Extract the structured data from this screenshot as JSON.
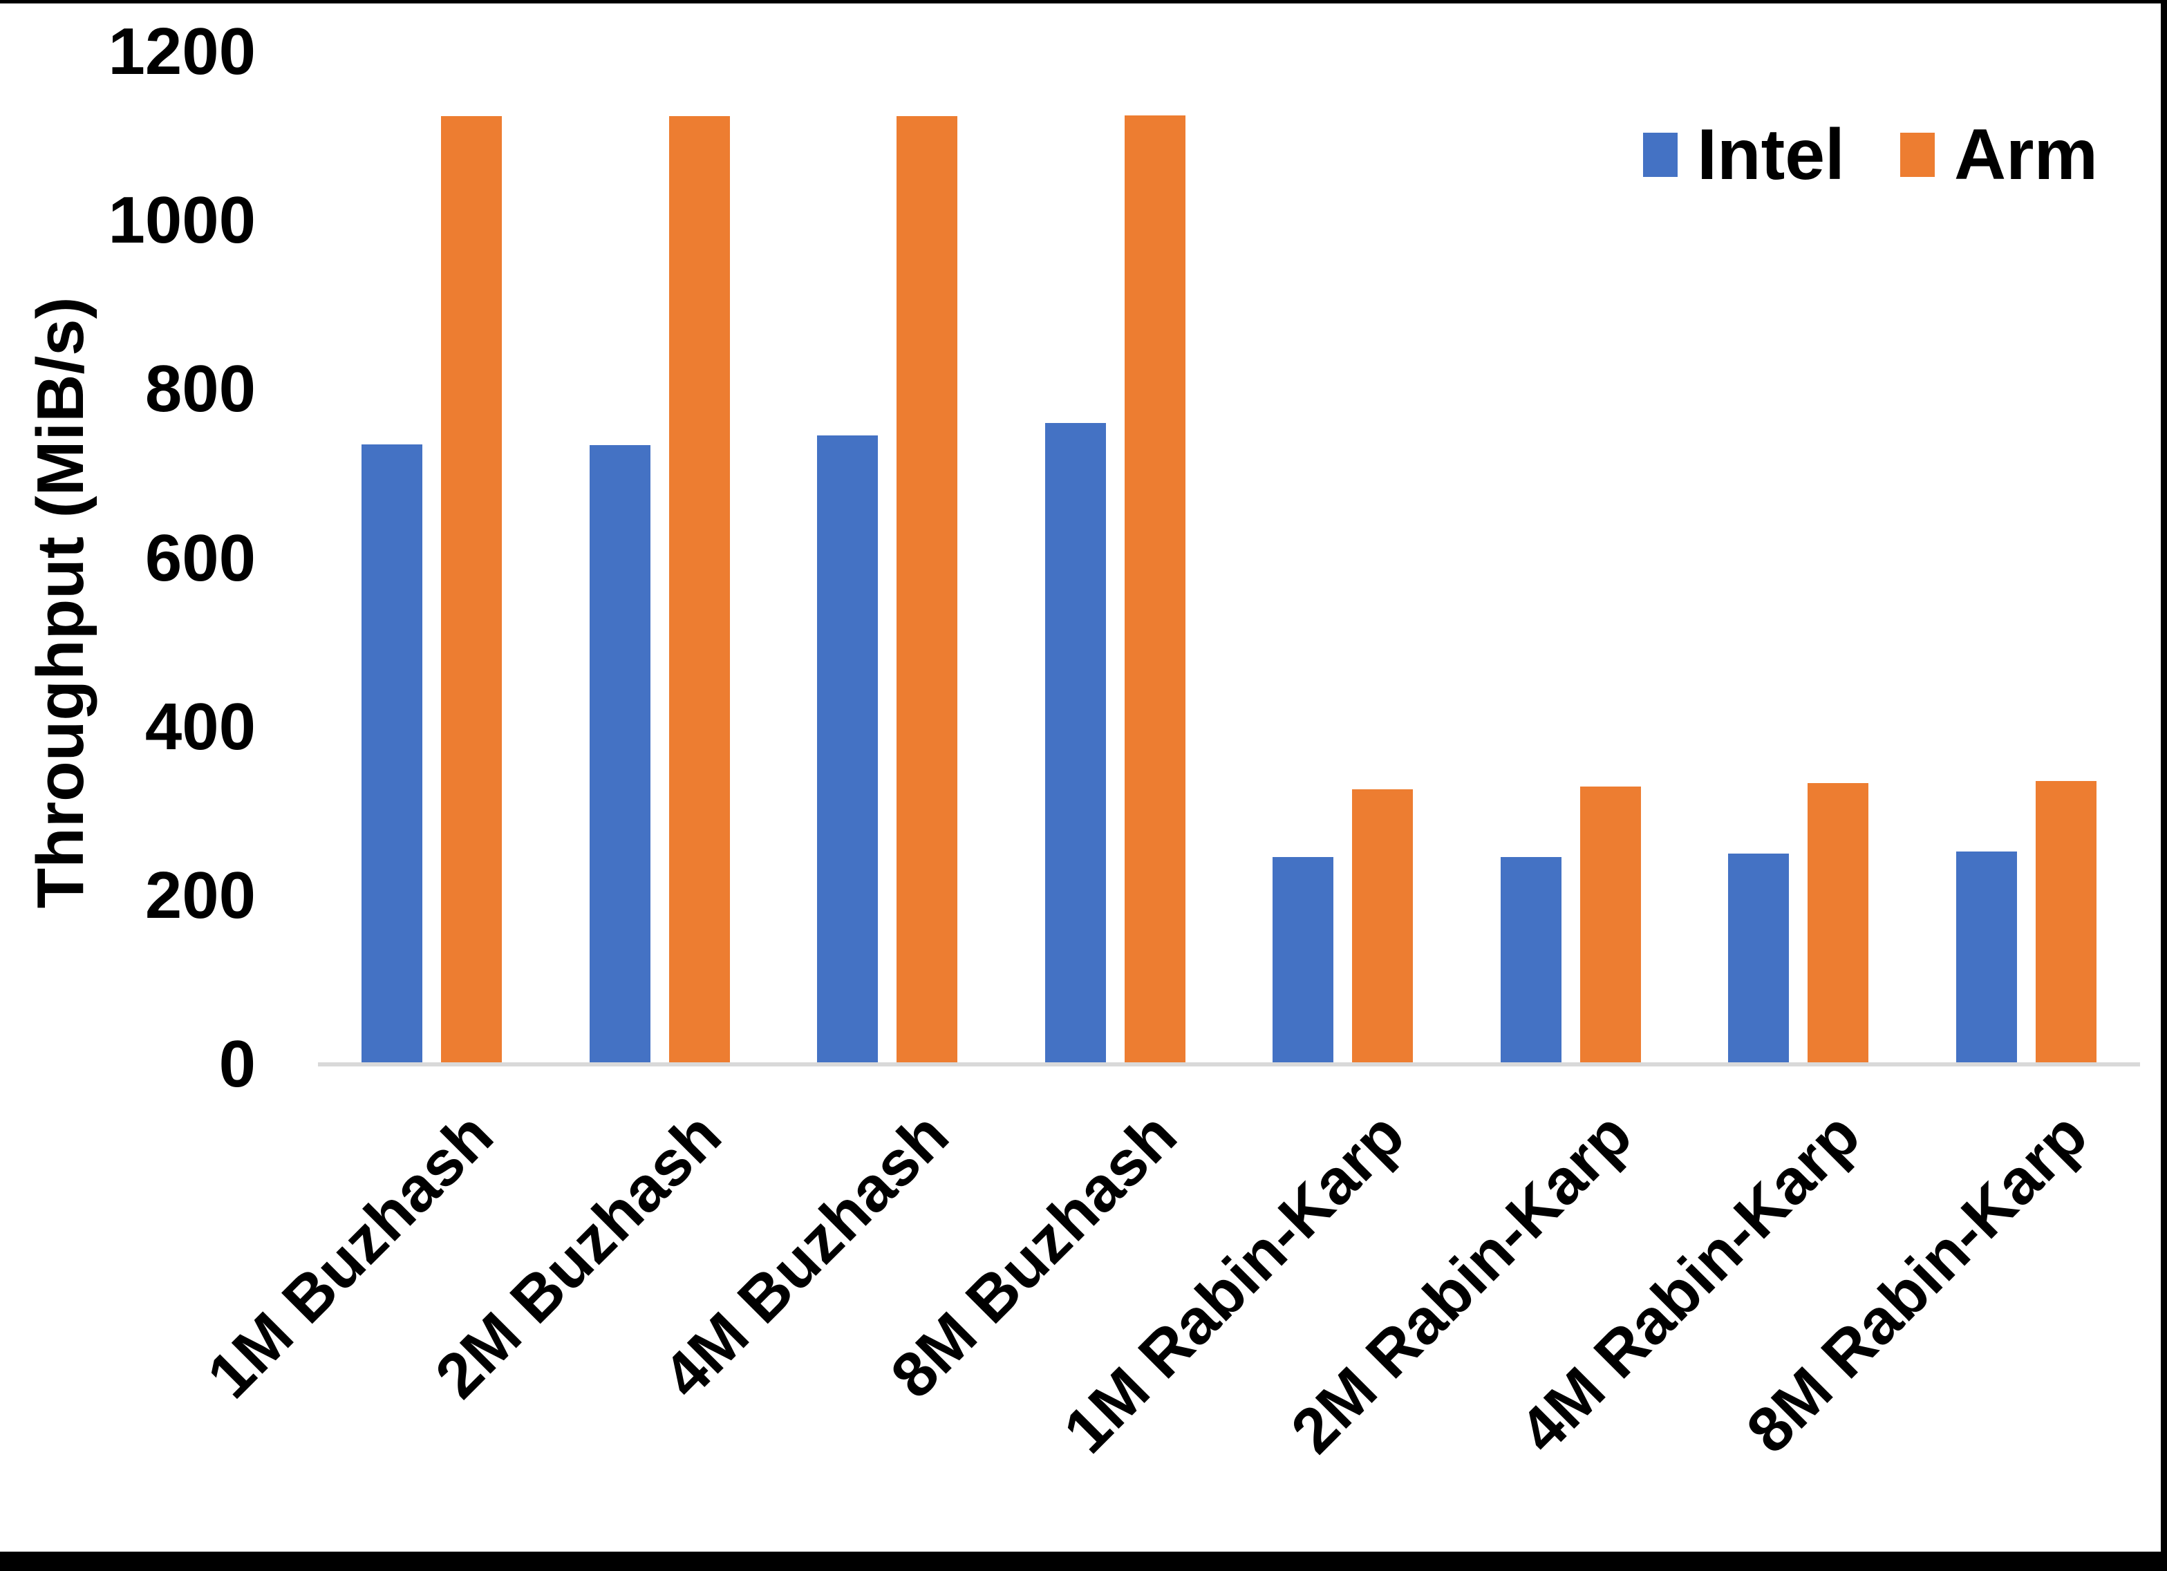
{
  "chart_data": {
    "type": "bar",
    "title": "",
    "xlabel": "",
    "ylabel": "Throughput (MiB/s)",
    "categories": [
      "1M Buzhash",
      "2M Buzhash",
      "4M Buzhash",
      "8M Buzhash",
      "1M Rabin-Karp",
      "2M Rabin-Karp",
      "4M Rabin-Karp",
      "8M Rabin-Karp"
    ],
    "series": [
      {
        "name": "Intel",
        "color": "#4472C4",
        "values": [
          735,
          734,
          745,
          760,
          246,
          246,
          250,
          252
        ]
      },
      {
        "name": "Arm",
        "color": "#ED7D31",
        "values": [
          1124,
          1124,
          1124,
          1125,
          326,
          329,
          333,
          336
        ]
      }
    ],
    "ylim": [
      0,
      1200
    ],
    "yticks": [
      0,
      200,
      400,
      600,
      800,
      1000,
      1200
    ],
    "grid": "off",
    "legend_position": "top-right",
    "axis_line_color": "#d9d9d9"
  }
}
